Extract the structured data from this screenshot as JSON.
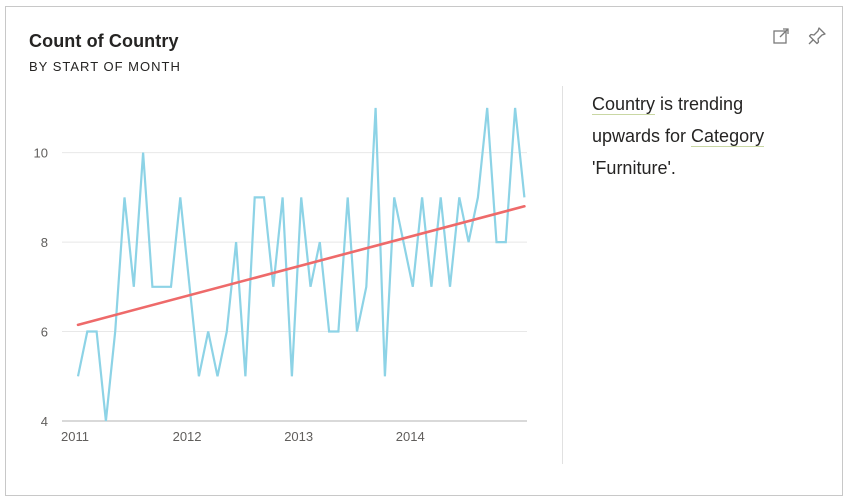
{
  "card": {
    "title": "Count of Country",
    "subtitle": "BY START OF MONTH",
    "icons": {
      "expand": "expand-icon",
      "pin": "pin-icon"
    }
  },
  "insight": {
    "term1": "Country",
    "text1": " is trending upwards for ",
    "term2": "Category",
    "text2": " 'Furniture'."
  },
  "colors": {
    "series": "#8dd3e6",
    "trend": "#ee6a6a",
    "grid": "#e8e8e8",
    "axis": "#b3b3b3"
  },
  "chart_data": {
    "type": "line",
    "title": "Count of Country",
    "subtitle": "BY START OF MONTH",
    "xlabel": "",
    "ylabel": "",
    "x_start": "2011-01",
    "x_ticks": [
      "2011",
      "2012",
      "2013",
      "2014"
    ],
    "y_ticks": [
      4,
      6,
      8,
      10
    ],
    "ylim": [
      4,
      11.4
    ],
    "grid": true,
    "series": [
      {
        "values": [
          5,
          6,
          6,
          4,
          6,
          9,
          7,
          10,
          7,
          7,
          7,
          9,
          7,
          5,
          6,
          5,
          6,
          8,
          5,
          9,
          9,
          7,
          9,
          5,
          9,
          7,
          8,
          6,
          6,
          9,
          6,
          7,
          11,
          5,
          9,
          8,
          7,
          9,
          7,
          9,
          7,
          9,
          8,
          9,
          11,
          8,
          8,
          11,
          9
        ]
      }
    ],
    "trend": {
      "start": 6.15,
      "end": 8.8
    }
  }
}
